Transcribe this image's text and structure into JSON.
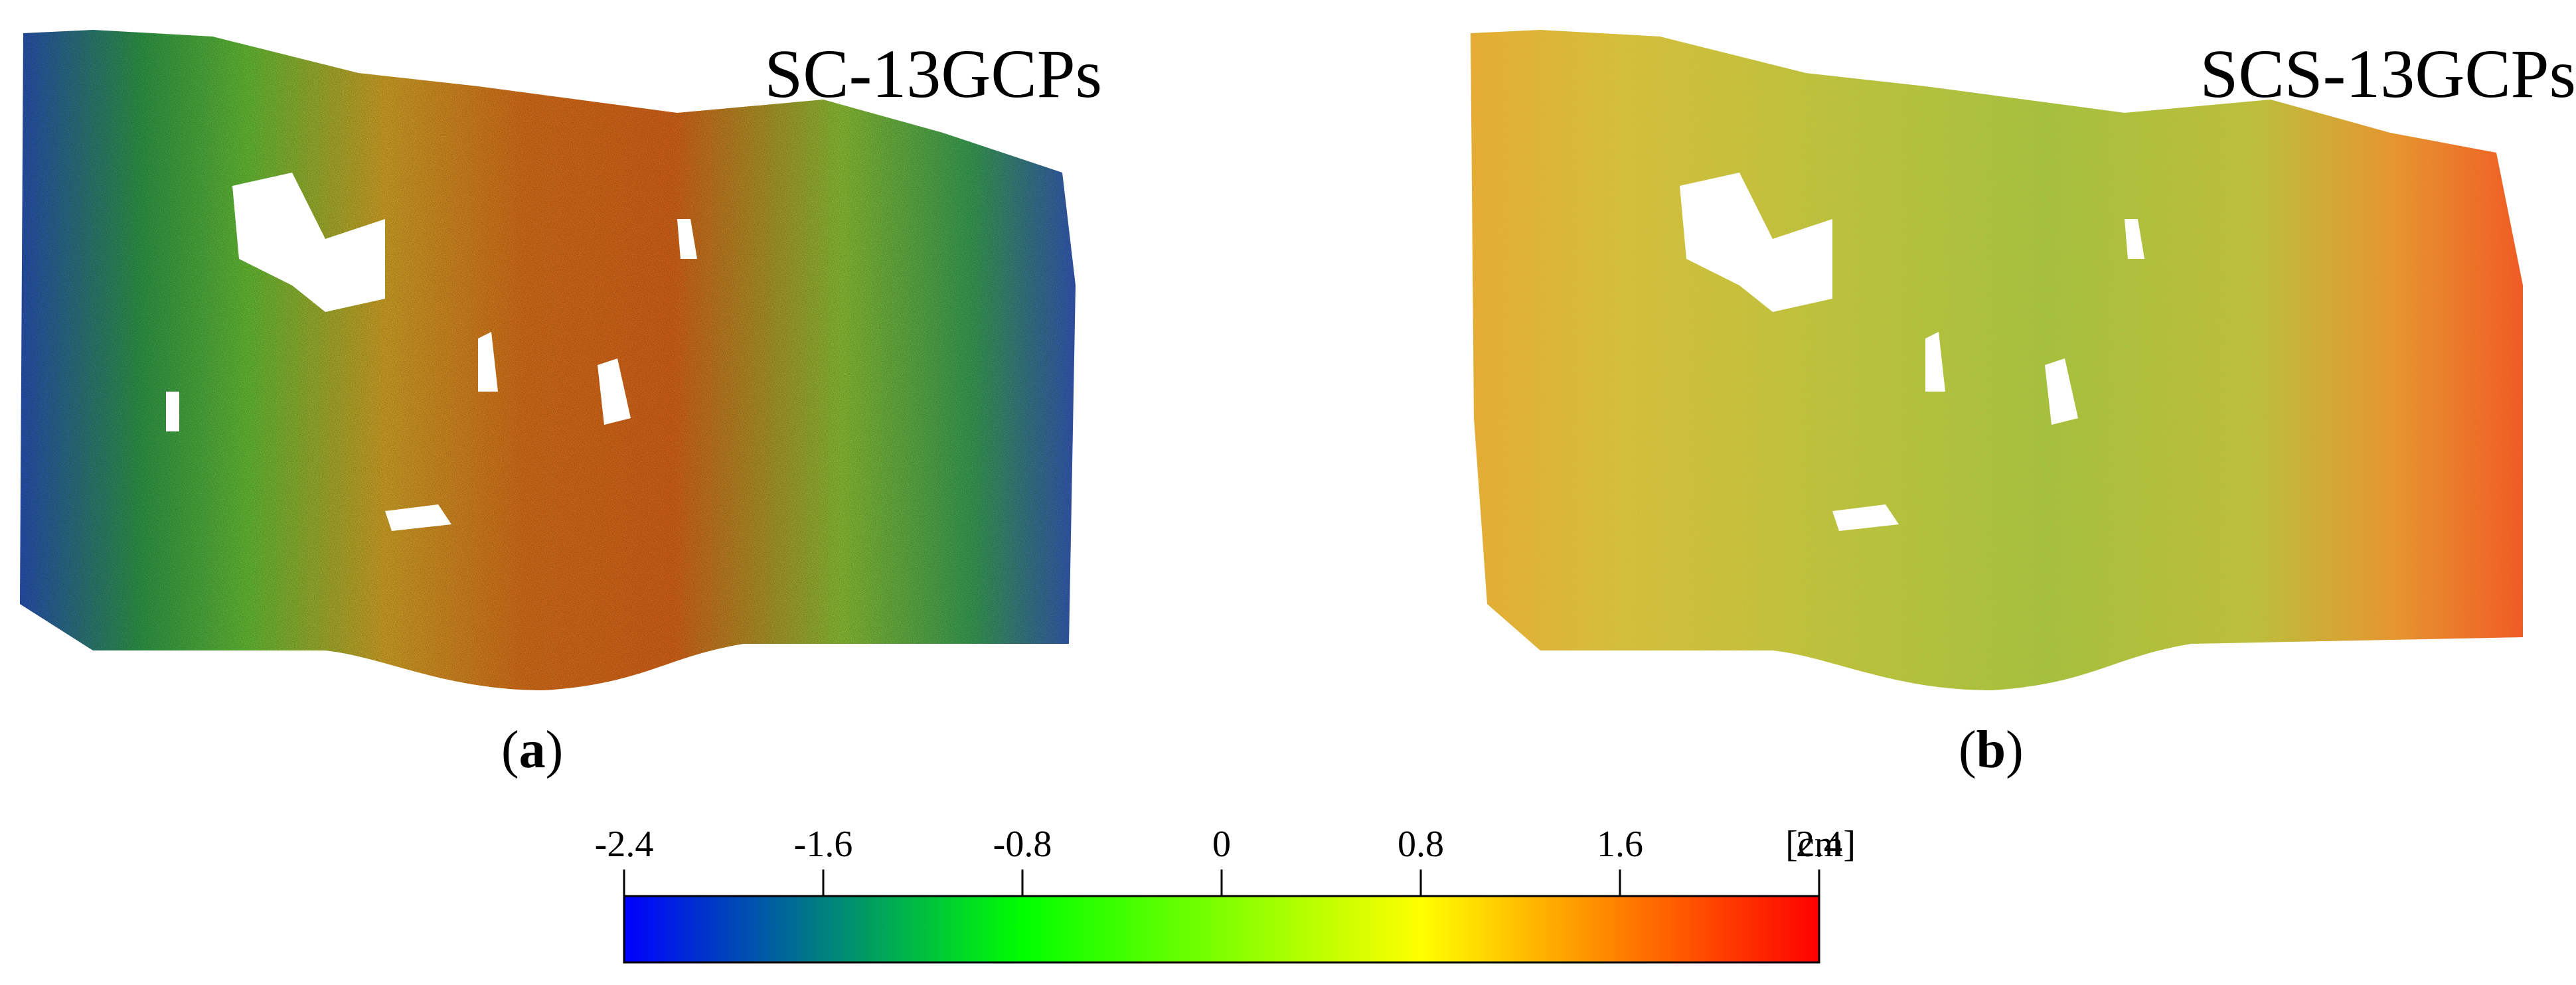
{
  "panels": [
    {
      "id": "a",
      "title": "SC-13GCPs",
      "caption": "a",
      "bias": "center-warm"
    },
    {
      "id": "b",
      "title": "SCS-13GCPs",
      "caption": "b",
      "bias": "right-warm"
    }
  ],
  "colorbar": {
    "ticks": [
      "-2.4",
      "-1.6",
      "-0.8",
      "0",
      "0.8",
      "1.6",
      "2.4"
    ],
    "unit": "[cm]",
    "colors": [
      "#0000ff",
      "#00ff00",
      "#ffff00",
      "#ff0000"
    ]
  }
}
